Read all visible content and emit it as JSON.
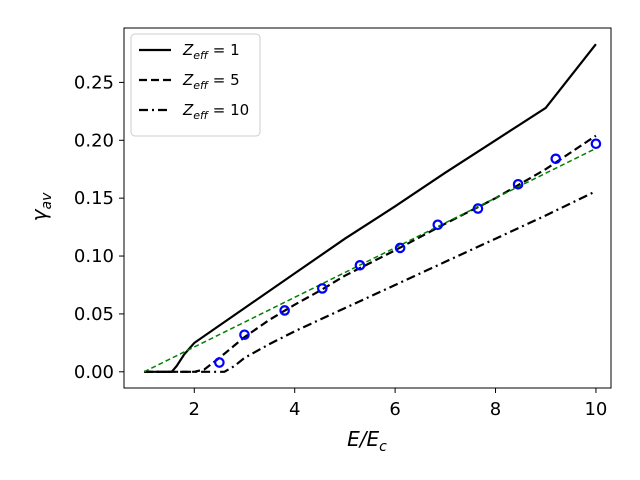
{
  "chart_data": {
    "type": "line",
    "xlabel": {
      "main": "E/E",
      "sub": "c"
    },
    "ylabel": {
      "main": "γ",
      "sub": "av"
    },
    "xlim": [
      0.6,
      10.3
    ],
    "ylim": [
      -0.014,
      0.297
    ],
    "xticks": [
      2,
      4,
      6,
      8,
      10
    ],
    "xtick_labels": [
      "2",
      "4",
      "6",
      "8",
      "10"
    ],
    "yticks": [
      0.0,
      0.05,
      0.1,
      0.15,
      0.2,
      0.25
    ],
    "ytick_labels": [
      "0.00",
      "0.05",
      "0.10",
      "0.15",
      "0.20",
      "0.25"
    ],
    "grid": false,
    "legend_position": "top-left",
    "series": [
      {
        "label": {
          "sym": "Z",
          "sub": "eff",
          "rest": " = 1"
        },
        "style": "solid",
        "color": "#000000",
        "x": [
          1.0,
          1.55,
          1.65,
          1.8,
          2.0,
          2.5,
          3.0,
          4.0,
          5.0,
          6.0,
          7.0,
          8.0,
          9.0,
          10.0
        ],
        "y": [
          0.0,
          0.0,
          0.005,
          0.015,
          0.025,
          0.04,
          0.055,
          0.085,
          0.115,
          0.143,
          0.172,
          0.2,
          0.228,
          0.283
        ]
      },
      {
        "label": {
          "sym": "Z",
          "sub": "eff",
          "rest": " = 5"
        },
        "style": "dashed",
        "color": "#000000",
        "x": [
          1.0,
          2.0,
          2.2,
          2.5,
          3.0,
          3.5,
          4.0,
          4.5,
          5.0,
          6.0,
          7.0,
          8.0,
          9.0,
          10.0
        ],
        "y": [
          0.0,
          0.0,
          0.002,
          0.012,
          0.03,
          0.045,
          0.058,
          0.07,
          0.083,
          0.105,
          0.128,
          0.15,
          0.175,
          0.204
        ]
      },
      {
        "label": {
          "sym": "Z",
          "sub": "eff",
          "rest": " = 10"
        },
        "style": "dashdot",
        "color": "#000000",
        "x": [
          1.0,
          2.6,
          2.8,
          3.0,
          3.5,
          4.0,
          5.0,
          6.0,
          7.0,
          8.0,
          9.0,
          10.0
        ],
        "y": [
          0.0,
          0.0,
          0.005,
          0.012,
          0.024,
          0.035,
          0.055,
          0.075,
          0.095,
          0.115,
          0.135,
          0.156
        ]
      },
      {
        "style": "dashed-thin",
        "color": "#008000",
        "x": [
          1.0,
          10.0
        ],
        "y": [
          0.0,
          0.193
        ]
      }
    ],
    "scatter": {
      "color": "#0000ff",
      "x": [
        2.5,
        3.0,
        3.8,
        4.55,
        5.3,
        6.1,
        6.85,
        7.65,
        8.45,
        9.2,
        10.0
      ],
      "y": [
        0.008,
        0.032,
        0.053,
        0.072,
        0.092,
        0.107,
        0.127,
        0.141,
        0.162,
        0.184,
        0.197
      ]
    }
  }
}
